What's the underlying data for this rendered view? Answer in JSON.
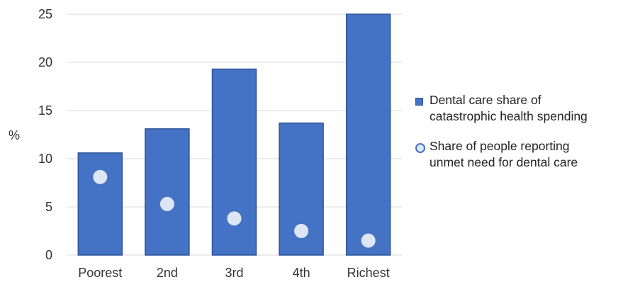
{
  "chart_data": {
    "type": "bar",
    "categories": [
      "Poorest",
      "2nd",
      "3rd",
      "4th",
      "Richest"
    ],
    "series": [
      {
        "name": "Dental care share of catastrophic health spending",
        "kind": "bar",
        "values": [
          10.6,
          13.1,
          19.3,
          13.7,
          25
        ]
      },
      {
        "name": "Share of people reporting unmet need for dental care",
        "kind": "marker",
        "values": [
          8.1,
          5.3,
          3.8,
          2.5,
          1.5
        ]
      }
    ],
    "title": "",
    "xlabel": "",
    "ylabel": "%",
    "ylim": [
      0,
      25
    ],
    "yticks": [
      0,
      5,
      10,
      15,
      20,
      25
    ],
    "grid": true,
    "legend_position": "right"
  },
  "colors": {
    "bar_fill": "#4472c4",
    "bar_stroke": "#2f5597",
    "marker_fill": "#dde6f4",
    "grid": "#d9d9d9"
  },
  "legend": {
    "bar_label_line1": "Dental care share of",
    "bar_label_line2": "catastrophic health spending",
    "marker_label_line1": "Share of people reporting",
    "marker_label_line2": "unmet need for dental care"
  }
}
